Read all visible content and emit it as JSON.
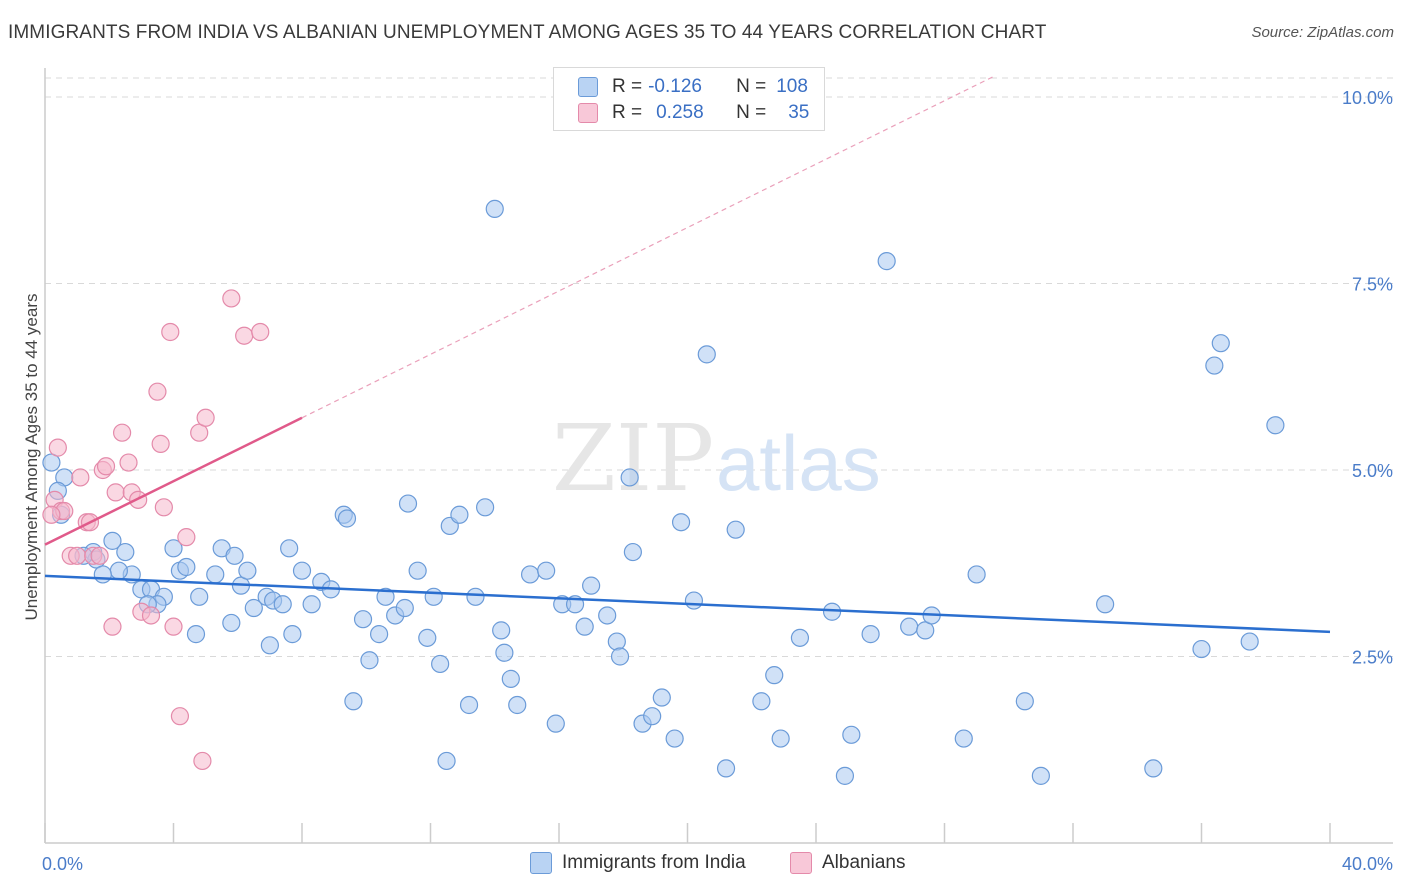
{
  "title": "IMMIGRANTS FROM INDIA VS ALBANIAN UNEMPLOYMENT AMONG AGES 35 TO 44 YEARS CORRELATION CHART",
  "source": "Source: ZipAtlas.com",
  "watermark": {
    "zip": "ZIP",
    "atlas": "atlas"
  },
  "legend": {
    "rows": [
      {
        "r_label": "R =",
        "r_value": "-0.126",
        "n_label": "N =",
        "n_value": "108"
      },
      {
        "r_label": "R =",
        "r_value": "0.258",
        "n_label": "N =",
        "n_value": "35"
      }
    ]
  },
  "bottom_legend": {
    "india": "Immigrants from India",
    "albanians": "Albanians"
  },
  "colors": {
    "india_fill": "#a9c8f0",
    "india_stroke": "#6b9bd8",
    "india_line": "#2b6fcf",
    "alb_fill": "#f6b8cc",
    "alb_stroke": "#e48aaa",
    "alb_line": "#e05a8a",
    "grid": "#d9d9d9",
    "tick_text": "#4a7cc9"
  },
  "chart_data": {
    "type": "scatter",
    "title": "IMMIGRANTS FROM INDIA VS ALBANIAN UNEMPLOYMENT AMONG AGES 35 TO 44 YEARS CORRELATION CHART",
    "xlabel": "",
    "ylabel": "Unemployment Among Ages 35 to 44 years",
    "xlim": [
      0,
      40
    ],
    "ylim": [
      0,
      10.5
    ],
    "x_tick_labels": [
      "0.0%",
      "40.0%"
    ],
    "y_ticks": [
      2.5,
      5.0,
      7.5,
      10.0
    ],
    "y_tick_labels": [
      "2.5%",
      "5.0%",
      "7.5%",
      "10.0%"
    ],
    "grid": true,
    "legend_position": "top-center",
    "series": [
      {
        "name": "Immigrants from India",
        "trend": {
          "x": [
            0,
            40
          ],
          "y": [
            3.58,
            2.83
          ]
        },
        "points": [
          [
            0.6,
            4.9
          ],
          [
            0.4,
            4.72
          ],
          [
            0.5,
            4.4
          ],
          [
            1.5,
            3.9
          ],
          [
            1.6,
            3.8
          ],
          [
            1.2,
            3.85
          ],
          [
            2.1,
            4.05
          ],
          [
            2.5,
            3.9
          ],
          [
            2.7,
            3.6
          ],
          [
            2.3,
            3.65
          ],
          [
            3.0,
            3.4
          ],
          [
            3.3,
            3.4
          ],
          [
            3.7,
            3.3
          ],
          [
            3.5,
            3.2
          ],
          [
            3.2,
            3.2
          ],
          [
            4.0,
            3.95
          ],
          [
            4.2,
            3.65
          ],
          [
            4.4,
            3.7
          ],
          [
            4.8,
            3.3
          ],
          [
            4.7,
            2.8
          ],
          [
            5.3,
            3.6
          ],
          [
            5.5,
            3.95
          ],
          [
            5.9,
            3.85
          ],
          [
            6.1,
            3.45
          ],
          [
            5.8,
            2.95
          ],
          [
            6.3,
            3.65
          ],
          [
            6.5,
            3.15
          ],
          [
            6.9,
            3.3
          ],
          [
            7.1,
            3.25
          ],
          [
            7.0,
            2.65
          ],
          [
            7.6,
            3.95
          ],
          [
            7.7,
            2.8
          ],
          [
            7.4,
            3.2
          ],
          [
            8.0,
            3.65
          ],
          [
            8.3,
            3.2
          ],
          [
            8.6,
            3.5
          ],
          [
            8.9,
            3.4
          ],
          [
            9.3,
            4.4
          ],
          [
            9.4,
            4.35
          ],
          [
            9.9,
            3.0
          ],
          [
            9.6,
            1.9
          ],
          [
            10.1,
            2.45
          ],
          [
            10.4,
            2.8
          ],
          [
            10.6,
            3.3
          ],
          [
            10.9,
            3.05
          ],
          [
            11.2,
            3.15
          ],
          [
            11.3,
            4.55
          ],
          [
            11.6,
            3.65
          ],
          [
            11.9,
            2.75
          ],
          [
            12.1,
            3.3
          ],
          [
            12.3,
            2.4
          ],
          [
            12.6,
            4.25
          ],
          [
            12.9,
            4.4
          ],
          [
            12.5,
            1.1
          ],
          [
            13.2,
            1.85
          ],
          [
            13.4,
            3.3
          ],
          [
            13.7,
            4.5
          ],
          [
            14.0,
            8.5
          ],
          [
            14.2,
            2.85
          ],
          [
            14.3,
            2.55
          ],
          [
            14.5,
            2.2
          ],
          [
            14.7,
            1.85
          ],
          [
            15.1,
            3.6
          ],
          [
            15.6,
            3.65
          ],
          [
            15.9,
            1.6
          ],
          [
            16.1,
            3.2
          ],
          [
            16.5,
            3.2
          ],
          [
            16.8,
            2.9
          ],
          [
            17.0,
            3.45
          ],
          [
            17.5,
            3.05
          ],
          [
            17.8,
            2.7
          ],
          [
            17.9,
            2.5
          ],
          [
            18.2,
            4.9
          ],
          [
            18.3,
            3.9
          ],
          [
            18.6,
            1.6
          ],
          [
            18.9,
            1.7
          ],
          [
            19.2,
            1.95
          ],
          [
            19.6,
            1.4
          ],
          [
            19.8,
            4.3
          ],
          [
            20.2,
            3.25
          ],
          [
            20.6,
            6.55
          ],
          [
            21.2,
            1.0
          ],
          [
            21.5,
            4.2
          ],
          [
            22.3,
            1.9
          ],
          [
            22.7,
            2.25
          ],
          [
            22.9,
            1.4
          ],
          [
            23.5,
            2.75
          ],
          [
            24.5,
            3.1
          ],
          [
            24.9,
            0.9
          ],
          [
            25.1,
            1.45
          ],
          [
            25.7,
            2.8
          ],
          [
            26.2,
            7.8
          ],
          [
            26.9,
            2.9
          ],
          [
            27.4,
            2.85
          ],
          [
            27.6,
            3.05
          ],
          [
            28.6,
            1.4
          ],
          [
            29.0,
            3.6
          ],
          [
            30.5,
            1.9
          ],
          [
            31.0,
            0.9
          ],
          [
            33.0,
            3.2
          ],
          [
            34.5,
            1.0
          ],
          [
            36.0,
            2.6
          ],
          [
            36.4,
            6.4
          ],
          [
            36.6,
            6.7
          ],
          [
            37.5,
            2.7
          ],
          [
            38.3,
            5.6
          ],
          [
            0.2,
            5.1
          ],
          [
            1.8,
            3.6
          ]
        ]
      },
      {
        "name": "Albanians",
        "trend": {
          "x": [
            0,
            8
          ],
          "y": [
            4.0,
            5.7
          ]
        },
        "points": [
          [
            0.3,
            4.6
          ],
          [
            0.4,
            5.3
          ],
          [
            0.5,
            4.45
          ],
          [
            0.6,
            4.45
          ],
          [
            0.2,
            4.4
          ],
          [
            0.8,
            3.85
          ],
          [
            1.0,
            3.85
          ],
          [
            1.1,
            4.9
          ],
          [
            1.3,
            4.3
          ],
          [
            1.4,
            4.3
          ],
          [
            1.5,
            3.85
          ],
          [
            1.7,
            3.85
          ],
          [
            1.8,
            5.0
          ],
          [
            1.9,
            5.05
          ],
          [
            2.2,
            4.7
          ],
          [
            2.4,
            5.5
          ],
          [
            2.6,
            5.1
          ],
          [
            2.7,
            4.7
          ],
          [
            2.9,
            4.6
          ],
          [
            2.1,
            2.9
          ],
          [
            3.0,
            3.1
          ],
          [
            3.3,
            3.05
          ],
          [
            3.5,
            6.05
          ],
          [
            3.6,
            5.35
          ],
          [
            3.7,
            4.5
          ],
          [
            3.9,
            6.85
          ],
          [
            4.0,
            2.9
          ],
          [
            4.2,
            1.7
          ],
          [
            4.4,
            4.1
          ],
          [
            4.8,
            5.5
          ],
          [
            5.0,
            5.7
          ],
          [
            4.9,
            1.1
          ],
          [
            5.8,
            7.3
          ],
          [
            6.2,
            6.8
          ],
          [
            6.7,
            6.85
          ]
        ]
      }
    ]
  }
}
